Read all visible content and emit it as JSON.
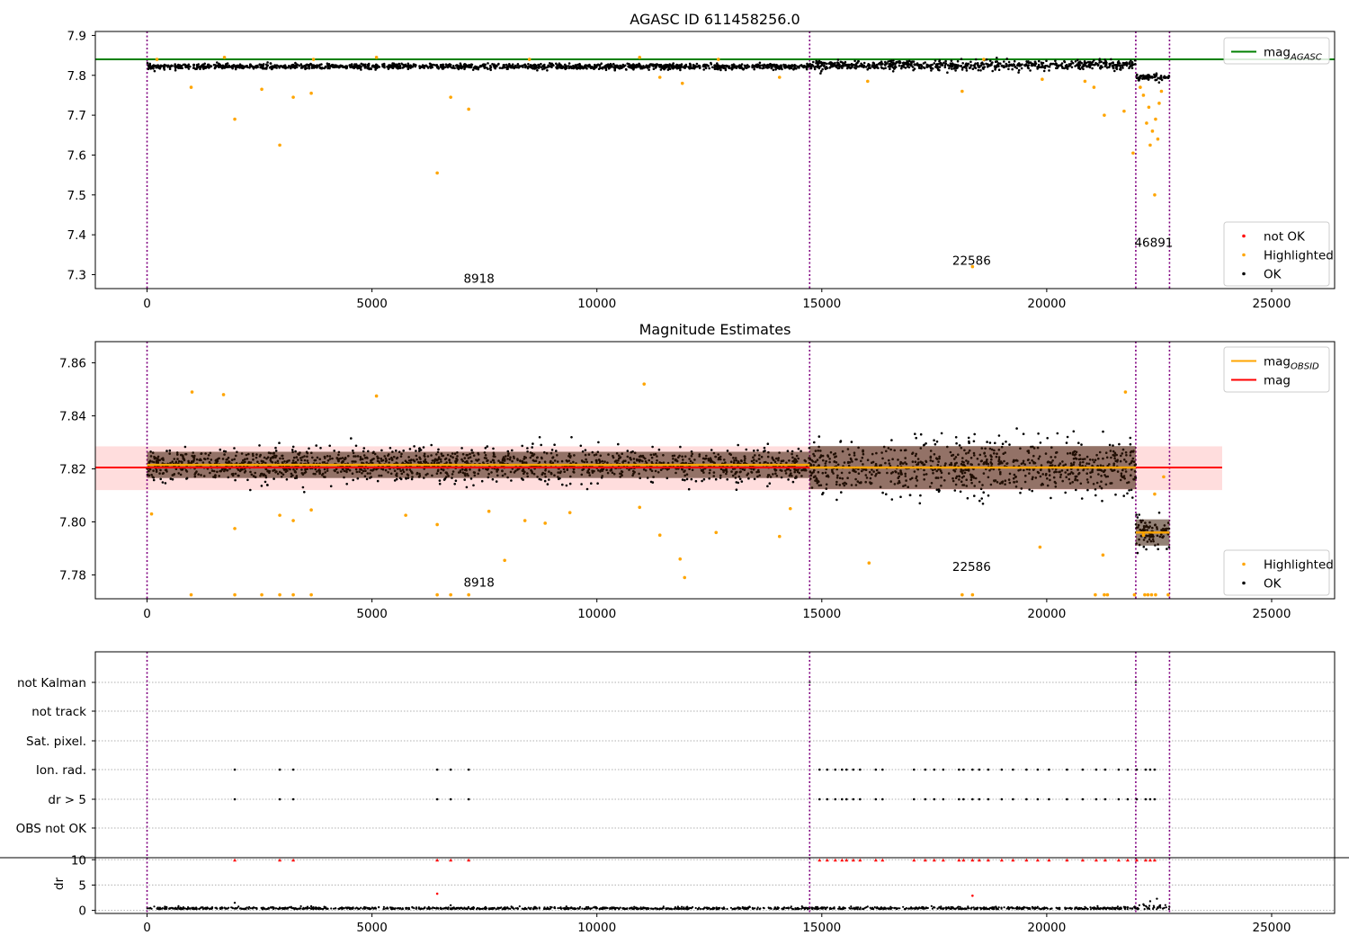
{
  "chart_data": [
    {
      "type": "scatter",
      "title": "AGASC ID 611458256.0",
      "xlabel": "",
      "ylabel": "",
      "xlim": [
        -1150,
        26400
      ],
      "ylim": [
        7.265,
        7.91
      ],
      "x_ticks": [
        0,
        5000,
        10000,
        15000,
        20000,
        25000
      ],
      "y_ticks": [
        7.3,
        7.4,
        7.5,
        7.6,
        7.7,
        7.8,
        7.9
      ],
      "grid": false,
      "obsid_boundaries": [
        0,
        14730,
        21980,
        22730
      ],
      "reference_lines": [
        {
          "name": "mag_AGASC",
          "y": 7.84,
          "color": "#008000"
        }
      ],
      "annotations": [
        {
          "text": "8918",
          "x": 7380,
          "y": 7.28
        },
        {
          "text": "22586",
          "x": 18330,
          "y": 7.325
        },
        {
          "text": "46891",
          "x": 22380,
          "y": 7.37
        }
      ],
      "legends": [
        {
          "placement": "top-right",
          "entries": [
            {
              "label": "mag",
              "sub": "AGASC",
              "kind": "line",
              "color": "#008000"
            }
          ]
        },
        {
          "placement": "bottom-right",
          "entries": [
            {
              "label": "not OK",
              "kind": "marker",
              "color": "#ff0000"
            },
            {
              "label": "Highlighted",
              "kind": "marker",
              "color": "#ffa500"
            },
            {
              "label": "OK",
              "kind": "marker",
              "color": "#000000"
            }
          ]
        }
      ],
      "series": [
        {
          "name": "OK",
          "color": "#000000",
          "segments": [
            {
              "x0": 0,
              "x1": 14730,
              "center": 7.822,
              "spread": 0.006
            },
            {
              "x0": 14730,
              "x1": 21980,
              "center": 7.825,
              "spread": 0.011
            },
            {
              "x0": 21980,
              "x1": 22730,
              "center": 7.795,
              "spread": 0.007
            }
          ]
        },
        {
          "name": "Highlighted",
          "color": "#ffa500",
          "points": [
            [
              1950,
              7.69
            ],
            [
              2950,
              7.625
            ],
            [
              3250,
              7.745
            ],
            [
              3650,
              7.755
            ],
            [
              2550,
              7.765
            ],
            [
              980,
              7.77
            ],
            [
              6450,
              7.555
            ],
            [
              6750,
              7.745
            ],
            [
              7150,
              7.715
            ],
            [
              11400,
              7.795
            ],
            [
              11900,
              7.78
            ],
            [
              14060,
              7.795
            ],
            [
              16020,
              7.785
            ],
            [
              18120,
              7.76
            ],
            [
              18350,
              7.32
            ],
            [
              19900,
              7.79
            ],
            [
              20850,
              7.785
            ],
            [
              21050,
              7.77
            ],
            [
              21280,
              7.7
            ],
            [
              21720,
              7.71
            ],
            [
              21920,
              7.605
            ],
            [
              22080,
              7.77
            ],
            [
              22150,
              7.75
            ],
            [
              22220,
              7.68
            ],
            [
              22270,
              7.72
            ],
            [
              22300,
              7.625
            ],
            [
              22350,
              7.66
            ],
            [
              22400,
              7.5
            ],
            [
              22420,
              7.69
            ],
            [
              22470,
              7.64
            ],
            [
              22500,
              7.73
            ],
            [
              22550,
              7.76
            ],
            [
              220,
              7.84
            ],
            [
              1720,
              7.845
            ],
            [
              3700,
              7.84
            ],
            [
              5100,
              7.845
            ],
            [
              8500,
              7.84
            ],
            [
              10950,
              7.845
            ],
            [
              12700,
              7.84
            ],
            [
              18600,
              7.84
            ]
          ]
        }
      ]
    },
    {
      "type": "scatter",
      "title": "Magnitude Estimates",
      "xlabel": "",
      "ylabel": "",
      "xlim": [
        -1150,
        26400
      ],
      "ylim": [
        7.771,
        7.868
      ],
      "x_ticks": [
        0,
        5000,
        10000,
        15000,
        20000,
        25000
      ],
      "y_ticks": [
        7.78,
        7.8,
        7.82,
        7.84,
        7.86
      ],
      "grid": false,
      "obsid_boundaries": [
        0,
        14730,
        21980,
        22730
      ],
      "bands": [
        {
          "y0": 7.812,
          "y1": 7.8285,
          "x0": -1150,
          "x1": 23900,
          "color": "#ffb3b3"
        }
      ],
      "reference_lines": [
        {
          "name": "mag",
          "y": 7.8205,
          "x0": -1150,
          "x1": 23900,
          "color": "#ff0000"
        },
        {
          "name": "mag_OBSID",
          "segments": [
            {
              "x0": 0,
              "x1": 14730,
              "y": 7.8215
            },
            {
              "x0": 14730,
              "x1": 21980,
              "y": 7.8205
            },
            {
              "x0": 21980,
              "x1": 22730,
              "y": 7.796
            }
          ],
          "color": "#ffa500"
        }
      ],
      "annotations": [
        {
          "text": "8918",
          "x": 7380,
          "y": 7.7755
        },
        {
          "text": "22586",
          "x": 18330,
          "y": 7.7815
        }
      ],
      "legends": [
        {
          "placement": "top-right",
          "entries": [
            {
              "label": "mag",
              "sub": "OBSID",
              "kind": "line",
              "color": "#ffa500"
            },
            {
              "label": "mag",
              "kind": "line",
              "color": "#ff0000"
            }
          ]
        },
        {
          "placement": "bottom-right",
          "entries": [
            {
              "label": "Highlighted",
              "kind": "marker",
              "color": "#ffa500"
            },
            {
              "label": "OK",
              "kind": "marker",
              "color": "#000000"
            }
          ]
        }
      ],
      "series": [
        {
          "name": "OK",
          "color": "#000000",
          "segments": [
            {
              "x0": 0,
              "x1": 14730,
              "center": 7.8215,
              "spread": 0.0055
            },
            {
              "x0": 14730,
              "x1": 21980,
              "center": 7.8205,
              "spread": 0.009
            },
            {
              "x0": 21980,
              "x1": 22730,
              "center": 7.796,
              "spread": 0.0055
            }
          ]
        },
        {
          "name": "Highlighted",
          "color": "#ffa500",
          "points": [
            [
              1950,
              7.7975
            ],
            [
              3250,
              7.8005
            ],
            [
              3650,
              7.8045
            ],
            [
              2950,
              7.8025
            ],
            [
              100,
              7.803
            ],
            [
              5750,
              7.8025
            ],
            [
              6450,
              7.799
            ],
            [
              7600,
              7.804
            ],
            [
              7950,
              7.7855
            ],
            [
              8400,
              7.8005
            ],
            [
              8850,
              7.7995
            ],
            [
              9400,
              7.8035
            ],
            [
              10950,
              7.8055
            ],
            [
              11400,
              7.795
            ],
            [
              11850,
              7.786
            ],
            [
              11950,
              7.779
            ],
            [
              12650,
              7.796
            ],
            [
              14060,
              7.7945
            ],
            [
              14300,
              7.805
            ],
            [
              16050,
              7.7845
            ],
            [
              19850,
              7.7905
            ],
            [
              21250,
              7.7875
            ],
            [
              22150,
              7.795
            ],
            [
              22400,
              7.8105
            ],
            [
              22600,
              7.817
            ],
            [
              980,
              7.7725
            ],
            [
              1950,
              7.7725
            ],
            [
              2550,
              7.7725
            ],
            [
              2950,
              7.7725
            ],
            [
              3250,
              7.7725
            ],
            [
              3650,
              7.7725
            ],
            [
              6450,
              7.7725
            ],
            [
              6750,
              7.7725
            ],
            [
              7150,
              7.7725
            ],
            [
              18120,
              7.7725
            ],
            [
              18350,
              7.7725
            ],
            [
              21080,
              7.7725
            ],
            [
              21280,
              7.7725
            ],
            [
              21350,
              7.7725
            ],
            [
              21950,
              7.7725
            ],
            [
              22180,
              7.7725
            ],
            [
              22250,
              7.7725
            ],
            [
              22330,
              7.7725
            ],
            [
              22420,
              7.7725
            ],
            [
              22700,
              7.7725
            ],
            [
              1000,
              7.849
            ],
            [
              1700,
              7.848
            ],
            [
              5100,
              7.8475
            ],
            [
              11050,
              7.852
            ],
            [
              21750,
              7.849
            ]
          ]
        }
      ]
    },
    {
      "type": "scatter",
      "title": "",
      "xlabel": "",
      "ylabel": "",
      "xlim": [
        -1150,
        26400
      ],
      "y_tick_labels": [
        "not Kalman",
        "not track",
        "Sat. pixel.",
        "Ion. rad.",
        "dr > 5",
        "OBS not OK"
      ],
      "grid": true,
      "obsid_boundaries": [
        0,
        14730,
        21980,
        22730
      ],
      "flag_x": [
        1950,
        2950,
        3250,
        6450,
        6750,
        7150,
        14950,
        15120,
        15300,
        15450,
        15550,
        15700,
        15850,
        16200,
        16350,
        17050,
        17300,
        17500,
        17700,
        18050,
        18150,
        18350,
        18500,
        18700,
        19000,
        19250,
        19550,
        19800,
        20050,
        20450,
        20800,
        21100,
        21300,
        21600,
        21800,
        22000,
        22200,
        22300,
        22400
      ],
      "flag_rows": [
        "Ion. rad.",
        "dr > 5"
      ],
      "not_kalman_x": [
        14730,
        21980
      ]
    },
    {
      "type": "scatter",
      "title": "",
      "xlabel": "",
      "ylabel": "dr",
      "xlim": [
        -1150,
        26400
      ],
      "ylim": [
        -0.6,
        10.4
      ],
      "x_ticks": [
        0,
        5000,
        10000,
        15000,
        20000,
        25000
      ],
      "y_ticks": [
        0,
        5,
        10
      ],
      "grid": true,
      "series": [
        {
          "name": "OK",
          "color": "#000000",
          "baseline": 0.25,
          "spread": 0.2
        },
        {
          "name": "not OK",
          "color": "#ff0000",
          "y": 10,
          "x_from_flags": true
        },
        {
          "name": "outliers",
          "color": "#000000",
          "points": [
            [
              1950,
              1.5
            ],
            [
              3650,
              0.8
            ],
            [
              6750,
              1.0
            ],
            [
              22300,
              1.8
            ],
            [
              22450,
              2.3
            ],
            [
              22150,
              1.2
            ]
          ]
        },
        {
          "name": "outliers_red",
          "color": "#ff0000",
          "points": [
            [
              6450,
              3.3
            ],
            [
              18350,
              2.9
            ]
          ]
        }
      ]
    }
  ]
}
